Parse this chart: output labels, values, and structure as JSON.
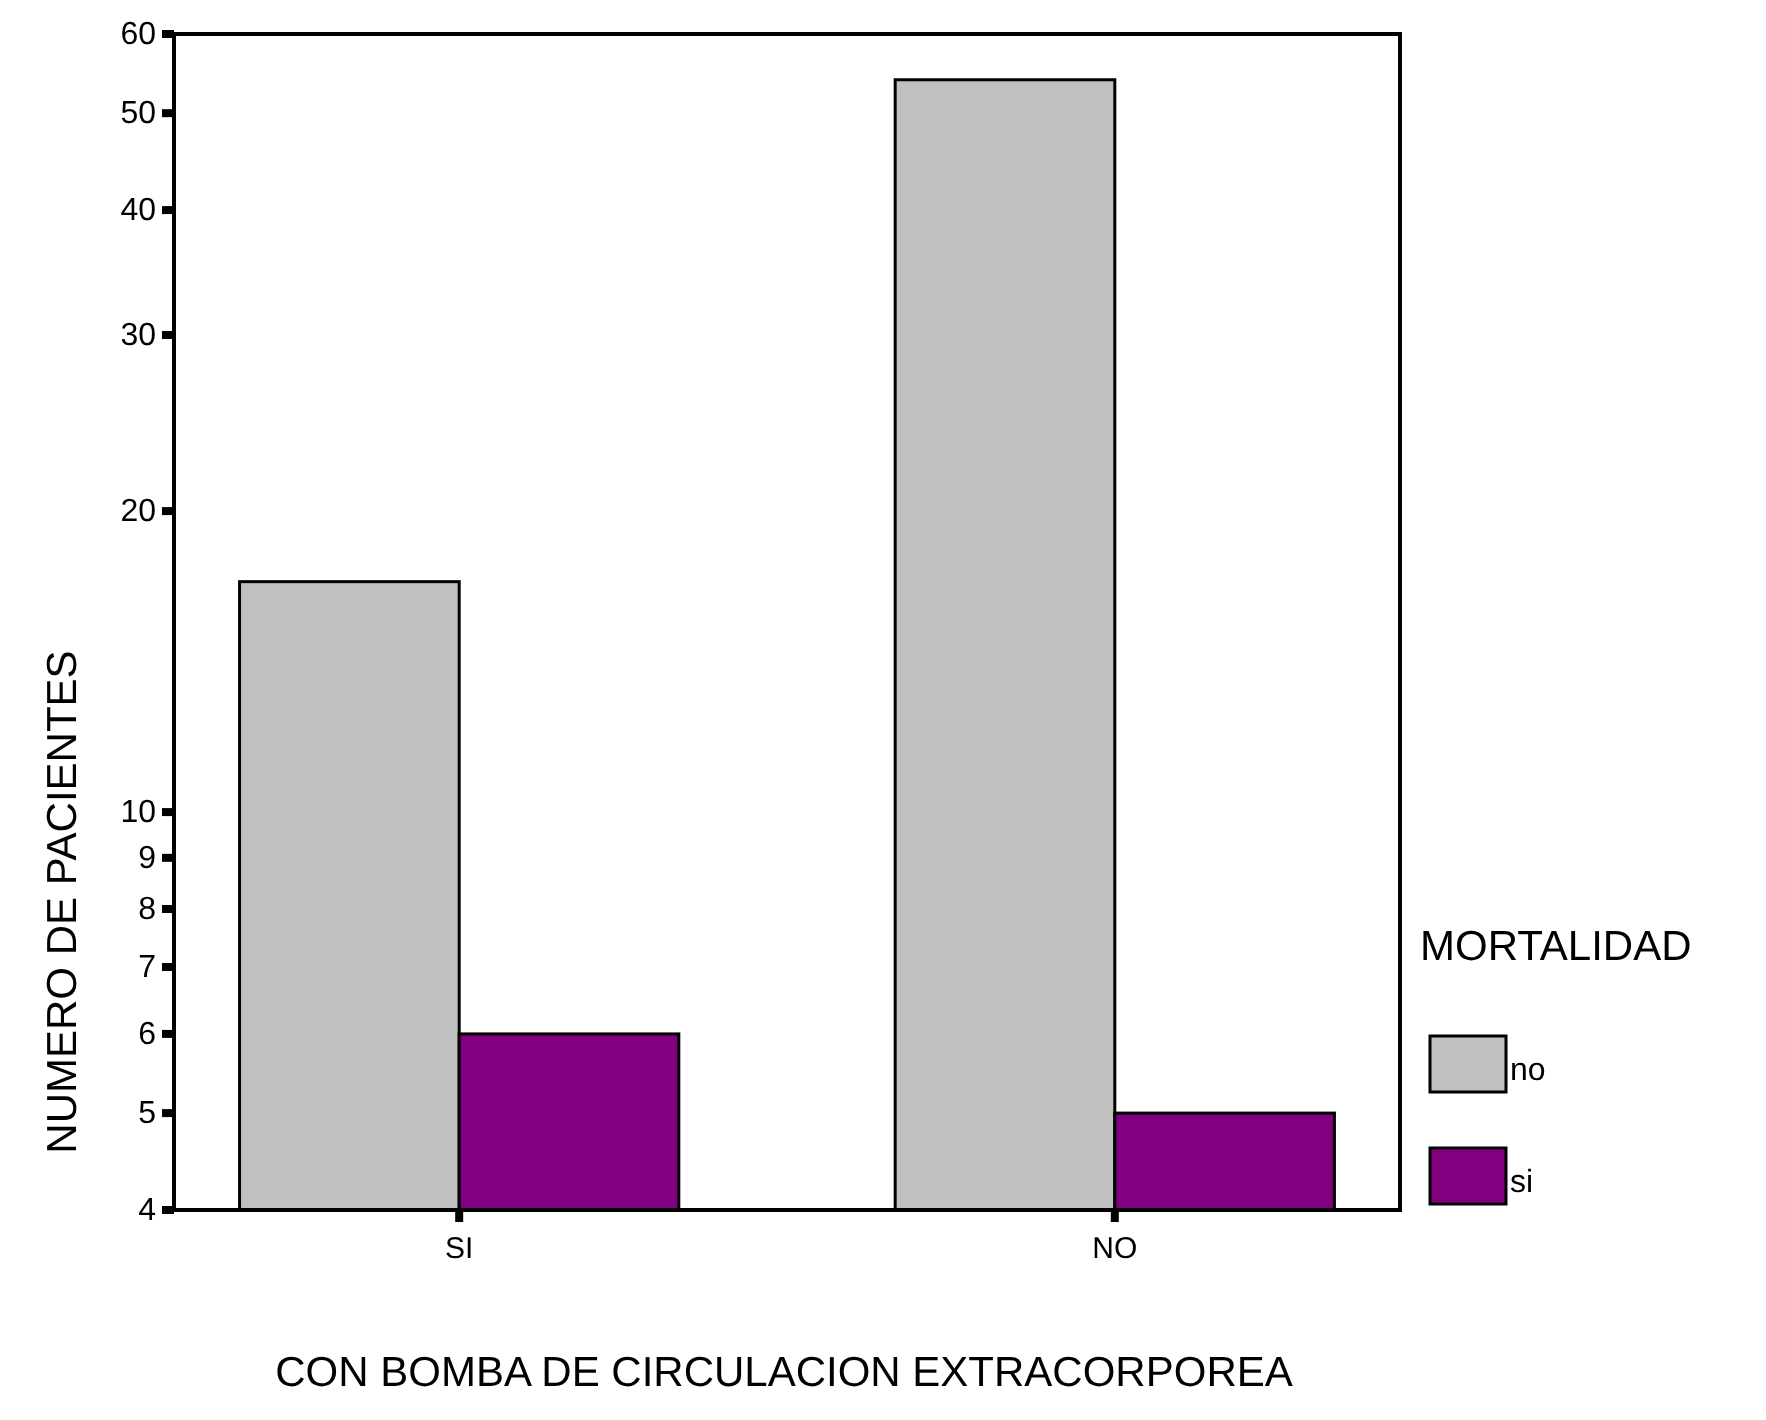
{
  "chart_data": {
    "type": "bar",
    "xlabel": "CON BOMBA DE CIRCULACION EXTRACORPOREA",
    "ylabel": "NUMERO DE PACIENTES",
    "legend_title": "MORTALIDAD",
    "legend": "right",
    "log": true,
    "categories": [
      "SI",
      "NO"
    ],
    "series": [
      {
        "name": "no",
        "color": "#c0c0c0",
        "values": [
          17,
          54
        ]
      },
      {
        "name": "si",
        "color": "#800080",
        "values": [
          6,
          5
        ]
      }
    ],
    "ylim": [
      4,
      60
    ],
    "yticks": [
      4,
      5,
      6,
      7,
      8,
      9,
      10,
      20,
      30,
      40,
      50,
      60
    ]
  }
}
